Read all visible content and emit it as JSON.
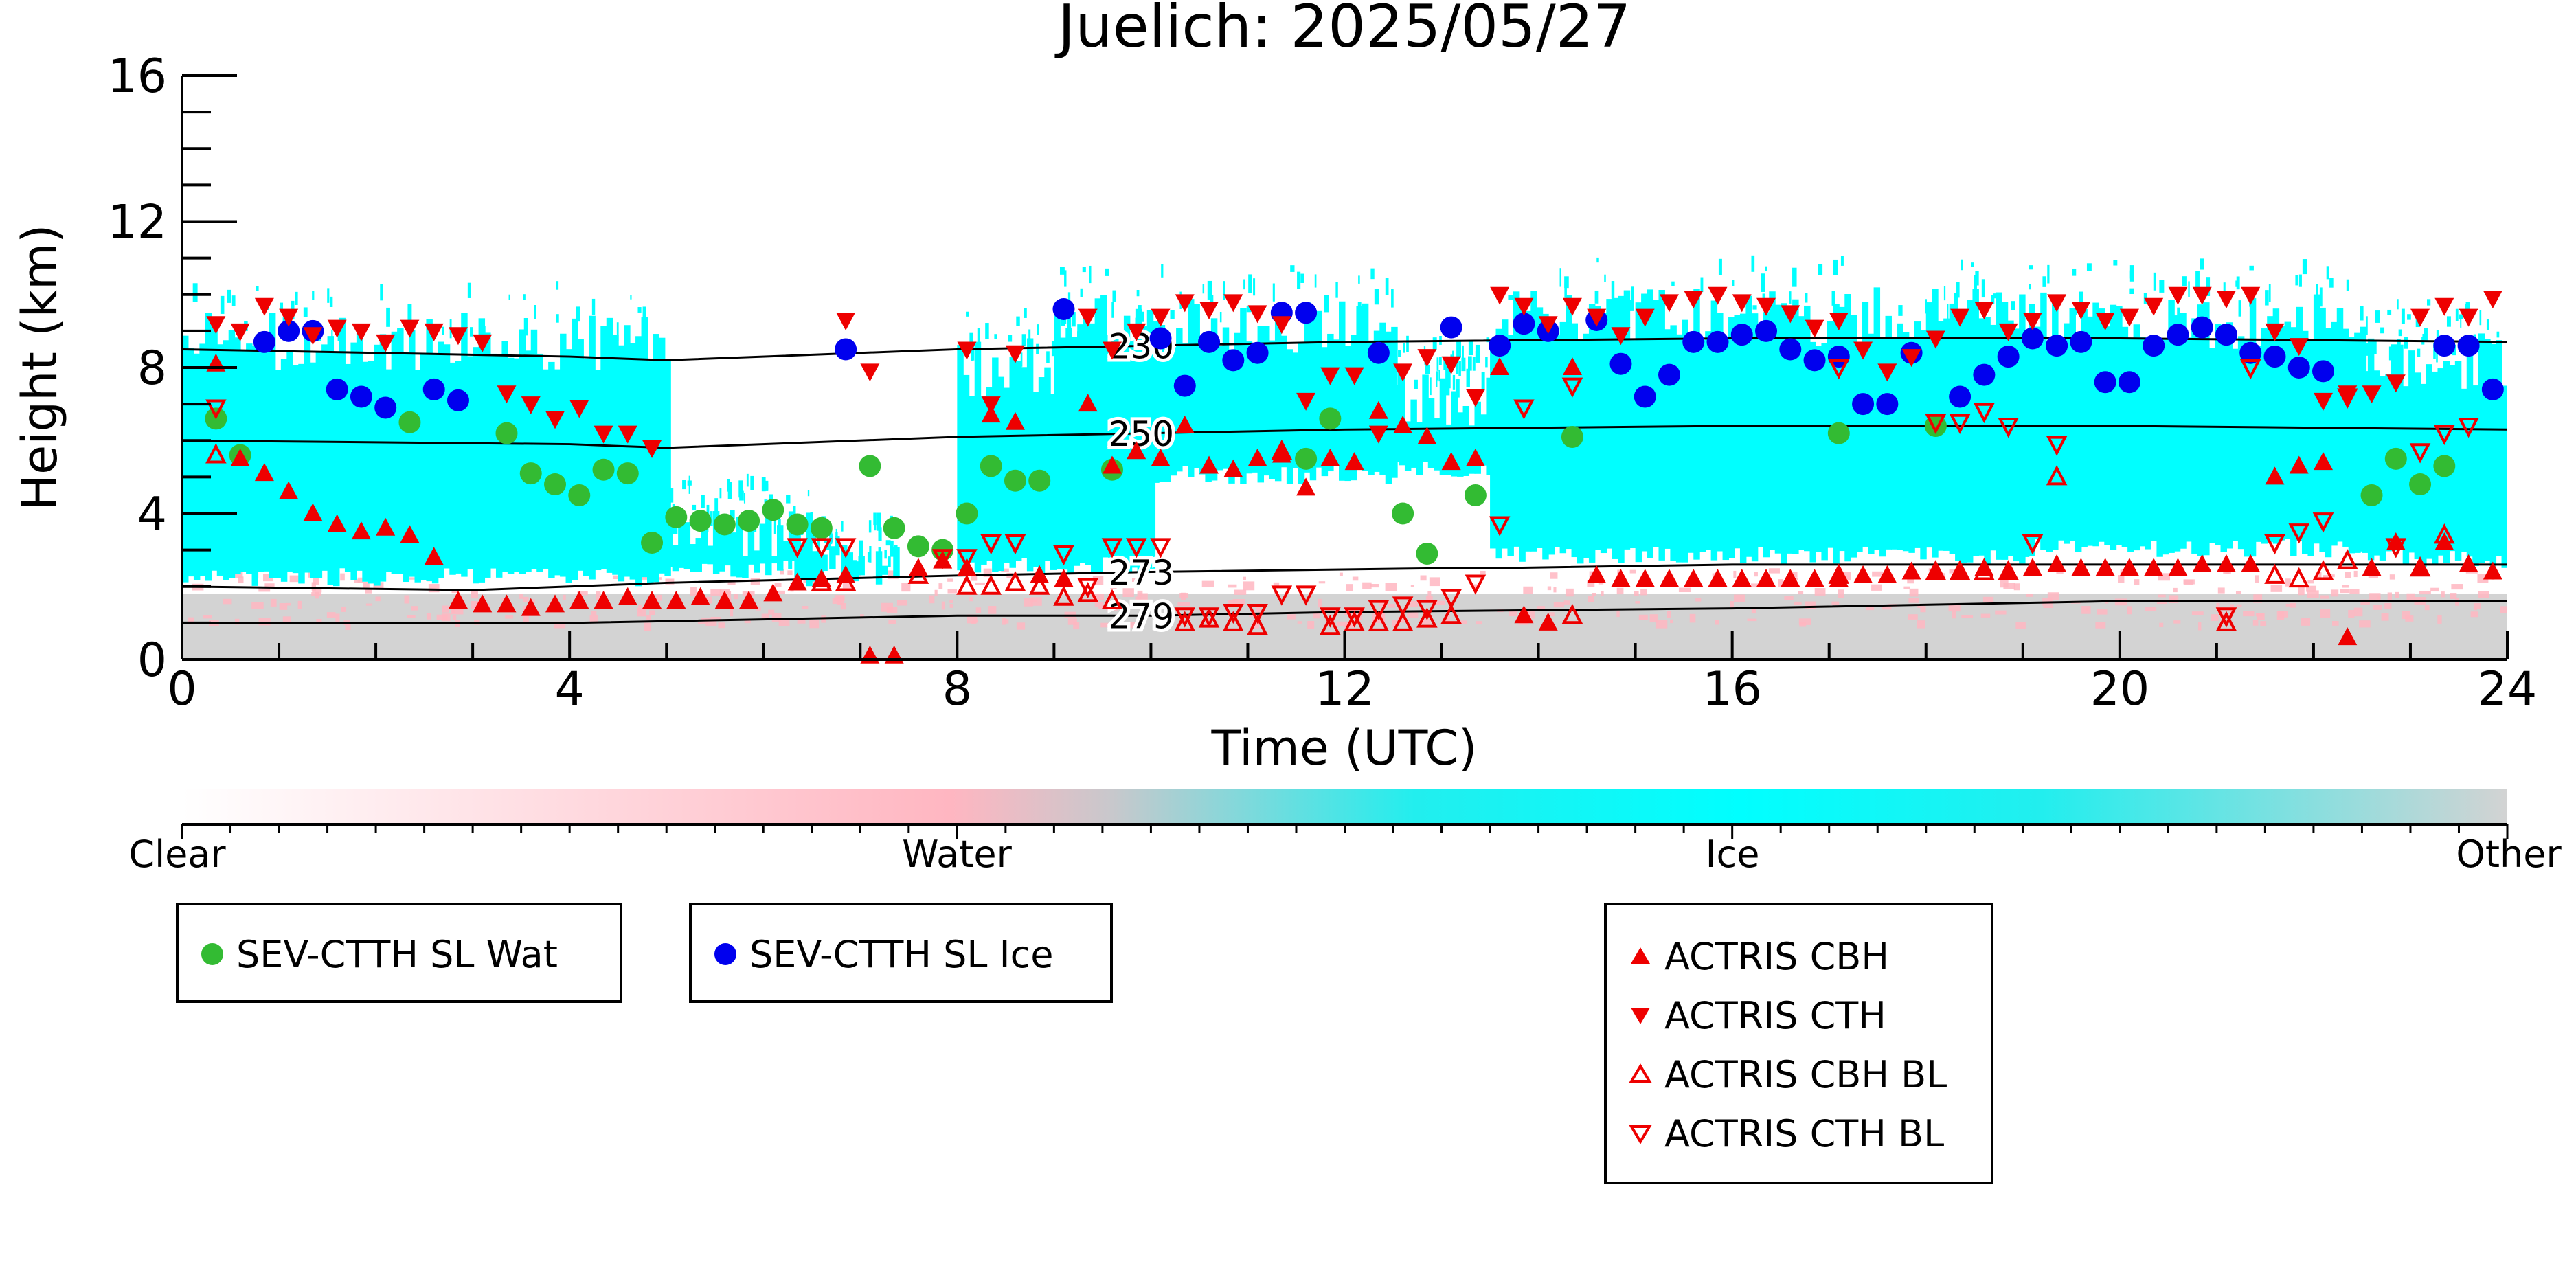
{
  "chart_data": {
    "type": "scatter",
    "title": "Juelich: 2025/05/27",
    "xlabel": "Time (UTC)",
    "ylabel": "Height (km)",
    "xlim": [
      0,
      24
    ],
    "ylim": [
      0,
      16
    ],
    "xticks": [
      0,
      4,
      8,
      12,
      16,
      20,
      24
    ],
    "yticks": [
      0,
      4,
      8,
      12,
      16
    ],
    "grid": false,
    "background_classification": {
      "colorbar": {
        "labels": [
          "Clear",
          "Water",
          "Ice",
          "Other"
        ],
        "colors": {
          "clear": "#ffffff",
          "water": "#ffb6c1",
          "ice": "#00ffff",
          "other": "#d3d3d3"
        }
      },
      "ice_regions": [
        {
          "x": [
            0.0,
            5.0
          ],
          "bottom": 2.0,
          "top": 9.5
        },
        {
          "x": [
            5.0,
            6.5
          ],
          "bottom": 2.2,
          "top": 4.2
        },
        {
          "x": [
            6.2,
            7.4
          ],
          "bottom": 2.0,
          "top": 3.2
        },
        {
          "x": [
            8.0,
            10.0
          ],
          "bottom": 2.3,
          "top": 8.8
        },
        {
          "x": [
            9.0,
            12.5
          ],
          "bottom": 4.8,
          "top": 10.0
        },
        {
          "x": [
            12.5,
            13.5
          ],
          "bottom": 5.0,
          "top": 8.0
        },
        {
          "x": [
            13.5,
            19.0
          ],
          "bottom": 2.6,
          "top": 10.2
        },
        {
          "x": [
            19.0,
            22.5
          ],
          "bottom": 2.8,
          "top": 10.1
        },
        {
          "x": [
            22.5,
            24.0
          ],
          "bottom": 2.5,
          "top": 9.0
        }
      ],
      "other_layer_top_km": 1.8,
      "water_speckle_range_km": [
        1.0,
        2.5
      ]
    },
    "isotherms": [
      {
        "label": "230",
        "label_x": 9.9,
        "x": [
          0,
          4,
          5,
          8,
          12,
          16,
          20,
          24
        ],
        "y": [
          8.5,
          8.3,
          8.2,
          8.5,
          8.7,
          8.8,
          8.8,
          8.7
        ]
      },
      {
        "label": "250",
        "label_x": 9.9,
        "x": [
          0,
          4,
          5,
          8,
          12,
          16,
          20,
          24
        ],
        "y": [
          6.0,
          5.9,
          5.8,
          6.1,
          6.3,
          6.4,
          6.4,
          6.3
        ]
      },
      {
        "label": "273",
        "label_x": 9.9,
        "x": [
          0,
          3,
          5,
          8,
          10,
          13,
          13.5,
          16,
          20,
          24
        ],
        "y": [
          2.0,
          1.9,
          2.1,
          2.3,
          2.4,
          2.5,
          2.5,
          2.6,
          2.6,
          2.6
        ]
      },
      {
        "label": "279",
        "label_x": 9.9,
        "x": [
          0,
          4,
          8,
          10,
          12,
          16,
          20,
          24
        ],
        "y": [
          1.0,
          1.0,
          1.2,
          1.2,
          1.3,
          1.4,
          1.6,
          1.6
        ]
      }
    ],
    "series": [
      {
        "name": "SEV-CTTH SL Wat",
        "marker": "circle-filled",
        "color": "#33bb33",
        "x": [
          0.35,
          0.6,
          2.35,
          3.35,
          3.6,
          3.85,
          4.1,
          4.35,
          4.6,
          4.85,
          5.1,
          5.35,
          5.6,
          5.85,
          6.1,
          6.35,
          6.6,
          7.1,
          7.35,
          7.6,
          7.85,
          8.1,
          8.35,
          8.6,
          8.85,
          9.6,
          11.6,
          11.85,
          12.6,
          12.85,
          13.35,
          14.35,
          17.1,
          18.1,
          22.6,
          22.85,
          23.1,
          23.35
        ],
        "y": [
          6.6,
          5.6,
          6.5,
          6.2,
          5.1,
          4.8,
          4.5,
          5.2,
          5.1,
          3.2,
          3.9,
          3.8,
          3.7,
          3.8,
          4.1,
          3.7,
          3.6,
          5.3,
          3.6,
          3.1,
          3.0,
          4.0,
          5.3,
          4.9,
          4.9,
          5.2,
          5.5,
          6.6,
          4.0,
          2.9,
          4.5,
          6.1,
          6.2,
          6.4,
          4.5,
          5.5,
          4.8,
          5.3
        ]
      },
      {
        "name": "SEV-CTTH SL Ice",
        "marker": "circle-filled",
        "color": "#0000ee",
        "x": [
          0.85,
          1.1,
          1.35,
          1.6,
          1.85,
          2.1,
          2.6,
          2.85,
          6.85,
          9.1,
          10.1,
          10.35,
          10.6,
          10.85,
          11.1,
          11.35,
          11.6,
          12.35,
          13.1,
          13.6,
          13.85,
          14.1,
          14.6,
          14.85,
          15.1,
          15.35,
          15.6,
          15.85,
          16.1,
          16.35,
          16.6,
          16.85,
          17.1,
          17.35,
          17.6,
          17.85,
          18.35,
          18.6,
          18.85,
          19.1,
          19.35,
          19.6,
          19.85,
          20.1,
          20.35,
          20.6,
          20.85,
          21.1,
          21.35,
          21.6,
          21.85,
          22.1,
          23.35,
          23.6,
          23.85
        ],
        "y": [
          8.7,
          9.0,
          9.0,
          7.4,
          7.2,
          6.9,
          7.4,
          7.1,
          8.5,
          9.6,
          8.8,
          7.5,
          8.7,
          8.2,
          8.4,
          9.5,
          9.5,
          8.4,
          9.1,
          8.6,
          9.2,
          9.0,
          9.3,
          8.1,
          7.2,
          7.8,
          8.7,
          8.7,
          8.9,
          9.0,
          8.5,
          8.2,
          8.3,
          7.0,
          7.0,
          8.4,
          7.2,
          7.8,
          8.3,
          8.8,
          8.6,
          8.7,
          7.6,
          7.6,
          8.6,
          8.9,
          9.1,
          8.9,
          8.4,
          8.3,
          8.0,
          7.9,
          8.6,
          8.6,
          7.4
        ]
      },
      {
        "name": "ACTRIS CBH",
        "marker": "triangle-up-filled",
        "color": "#ee0000",
        "x": [
          0.35,
          0.6,
          0.85,
          1.1,
          1.35,
          1.6,
          1.85,
          2.1,
          2.35,
          2.6,
          2.85,
          3.1,
          3.35,
          3.6,
          3.85,
          4.1,
          4.35,
          4.6,
          4.85,
          5.1,
          5.35,
          5.6,
          5.85,
          6.1,
          6.35,
          6.6,
          6.85,
          7.1,
          7.35,
          7.6,
          7.85,
          8.1,
          8.35,
          8.6,
          8.85,
          9.1,
          9.35,
          9.6,
          9.85,
          10.1,
          10.35,
          10.6,
          10.85,
          11.1,
          11.35,
          11.6,
          11.85,
          12.1,
          12.35,
          12.6,
          12.85,
          13.1,
          13.35,
          13.6,
          13.85,
          14.1,
          14.35,
          14.6,
          14.85,
          15.1,
          15.35,
          15.6,
          15.85,
          16.1,
          16.35,
          16.6,
          16.85,
          17.1,
          17.35,
          17.6,
          17.85,
          18.1,
          18.35,
          18.6,
          18.85,
          19.1,
          19.35,
          19.6,
          19.85,
          20.1,
          20.35,
          20.6,
          20.85,
          21.1,
          21.35,
          21.6,
          21.85,
          22.1,
          22.35,
          22.6,
          22.85,
          23.1,
          23.35,
          23.6,
          23.85
        ],
        "y": [
          8.1,
          5.5,
          5.1,
          4.6,
          4.0,
          3.7,
          3.5,
          3.6,
          3.4,
          2.8,
          1.6,
          1.5,
          1.5,
          1.4,
          1.5,
          1.6,
          1.6,
          1.7,
          1.6,
          1.6,
          1.7,
          1.6,
          1.6,
          1.8,
          2.1,
          2.2,
          2.3,
          0.1,
          0.1,
          2.5,
          2.7,
          2.5,
          6.7,
          6.5,
          2.3,
          2.2,
          7.0,
          5.3,
          5.7,
          5.5,
          6.4,
          5.3,
          5.2,
          5.5,
          5.6,
          4.7,
          5.5,
          5.4,
          6.8,
          6.4,
          6.1,
          5.4,
          5.5,
          8.0,
          1.2,
          1.0,
          8.0,
          2.3,
          2.2,
          2.2,
          2.2,
          2.2,
          2.2,
          2.2,
          2.2,
          2.2,
          2.2,
          2.2,
          2.3,
          2.3,
          2.4,
          2.4,
          2.4,
          2.5,
          2.4,
          2.5,
          2.6,
          2.5,
          2.5,
          2.5,
          2.5,
          2.5,
          2.6,
          2.6,
          2.6,
          5.0,
          5.3,
          5.4,
          0.6,
          2.5,
          3.2,
          2.5,
          3.2,
          2.6,
          2.4
        ]
      },
      {
        "name": "ACTRIS CTH",
        "marker": "triangle-down-filled",
        "color": "#ee0000",
        "x": [
          0.35,
          0.6,
          0.85,
          1.1,
          1.35,
          1.6,
          1.85,
          2.1,
          2.35,
          2.6,
          2.85,
          3.1,
          3.35,
          3.6,
          3.85,
          4.1,
          4.35,
          4.6,
          4.85,
          6.85,
          7.1,
          8.1,
          8.35,
          8.6,
          9.35,
          9.6,
          9.85,
          10.1,
          10.35,
          10.6,
          10.85,
          11.1,
          11.35,
          11.6,
          11.85,
          12.1,
          12.35,
          12.6,
          12.85,
          13.1,
          13.35,
          13.6,
          13.85,
          14.1,
          14.35,
          14.6,
          14.85,
          15.1,
          15.35,
          15.6,
          15.85,
          16.1,
          16.35,
          16.6,
          16.85,
          17.1,
          17.35,
          17.6,
          17.85,
          18.1,
          18.35,
          18.6,
          18.85,
          19.1,
          19.35,
          19.6,
          19.85,
          20.1,
          20.35,
          20.6,
          20.85,
          21.1,
          21.35,
          21.6,
          21.85,
          22.1,
          22.35,
          22.6,
          22.85,
          23.1,
          23.35,
          23.6,
          23.85
        ],
        "y": [
          9.2,
          9.0,
          9.7,
          9.4,
          8.9,
          9.1,
          9.0,
          8.7,
          9.1,
          9.0,
          8.9,
          8.7,
          7.3,
          7.0,
          6.6,
          6.9,
          6.2,
          6.2,
          5.8,
          9.3,
          7.9,
          8.5,
          7.0,
          8.4,
          9.4,
          8.5,
          9.0,
          9.4,
          9.8,
          9.6,
          9.8,
          9.5,
          9.2,
          7.1,
          7.8,
          7.8,
          6.2,
          7.9,
          8.3,
          8.1,
          7.2,
          10.0,
          9.7,
          9.2,
          9.7,
          9.4,
          8.9,
          9.4,
          9.8,
          9.9,
          10.0,
          9.8,
          9.7,
          9.5,
          9.1,
          9.3,
          8.5,
          7.9,
          8.3,
          8.8,
          9.4,
          9.6,
          9.0,
          9.3,
          9.8,
          9.6,
          9.3,
          9.4,
          9.7,
          10.0,
          10.0,
          9.9,
          10.0,
          9.0,
          8.6,
          7.1,
          7.3,
          7.3,
          7.6,
          9.4,
          9.7,
          9.4,
          9.9
        ]
      },
      {
        "name": "ACTRIS CBH BL",
        "marker": "triangle-up-open",
        "color": "#ee0000",
        "x": [
          0.35,
          6.6,
          6.85,
          7.6,
          8.1,
          8.35,
          8.6,
          8.85,
          9.1,
          9.35,
          9.6,
          10.35,
          10.6,
          10.85,
          11.1,
          11.35,
          11.85,
          12.1,
          12.35,
          12.6,
          12.85,
          13.1,
          14.35,
          17.1,
          18.1,
          18.35,
          18.6,
          18.85,
          19.35,
          21.1,
          21.6,
          21.85,
          22.1,
          22.35,
          23.1,
          23.35
        ],
        "y": [
          5.6,
          2.1,
          2.1,
          2.3,
          2.0,
          2.0,
          2.1,
          2.0,
          1.7,
          1.8,
          1.6,
          1.0,
          1.1,
          1.0,
          0.9,
          5.7,
          0.9,
          1.0,
          1.0,
          1.0,
          1.1,
          1.2,
          1.2,
          2.3,
          2.4,
          2.4,
          2.4,
          2.4,
          5.0,
          1.0,
          2.3,
          2.2,
          2.4,
          2.7,
          2.5,
          3.4
        ]
      },
      {
        "name": "ACTRIS CTH BL",
        "marker": "triangle-down-open",
        "color": "#ee0000",
        "x": [
          0.35,
          6.35,
          6.6,
          6.85,
          7.85,
          8.1,
          8.35,
          8.6,
          9.1,
          9.35,
          9.6,
          9.85,
          10.1,
          10.35,
          10.6,
          10.85,
          11.1,
          11.35,
          11.6,
          11.85,
          12.1,
          12.35,
          12.6,
          12.85,
          13.1,
          13.35,
          13.6,
          13.85,
          14.35,
          17.1,
          18.1,
          18.35,
          18.6,
          18.85,
          19.1,
          19.35,
          21.1,
          21.35,
          21.6,
          21.85,
          22.1,
          22.35,
          22.85,
          23.1,
          23.35,
          23.6
        ],
        "y": [
          6.9,
          3.1,
          3.1,
          3.1,
          2.8,
          2.8,
          3.2,
          3.2,
          2.9,
          2.0,
          3.1,
          3.1,
          3.1,
          1.2,
          1.2,
          1.3,
          1.3,
          1.8,
          1.8,
          1.2,
          1.2,
          1.4,
          1.5,
          1.4,
          1.7,
          2.1,
          3.7,
          6.9,
          7.5,
          8.0,
          6.5,
          6.5,
          6.8,
          6.4,
          3.2,
          5.9,
          1.2,
          8.0,
          3.2,
          3.5,
          3.8,
          7.2,
          3.1,
          5.7,
          6.2,
          6.4
        ]
      }
    ],
    "legend": {
      "placement": "below",
      "groups": [
        [
          "SEV-CTTH SL Wat"
        ],
        [
          "SEV-CTTH SL Ice"
        ],
        [
          "ACTRIS CBH",
          "ACTRIS CTH",
          "ACTRIS CBH BL",
          "ACTRIS CTH BL"
        ]
      ]
    }
  }
}
